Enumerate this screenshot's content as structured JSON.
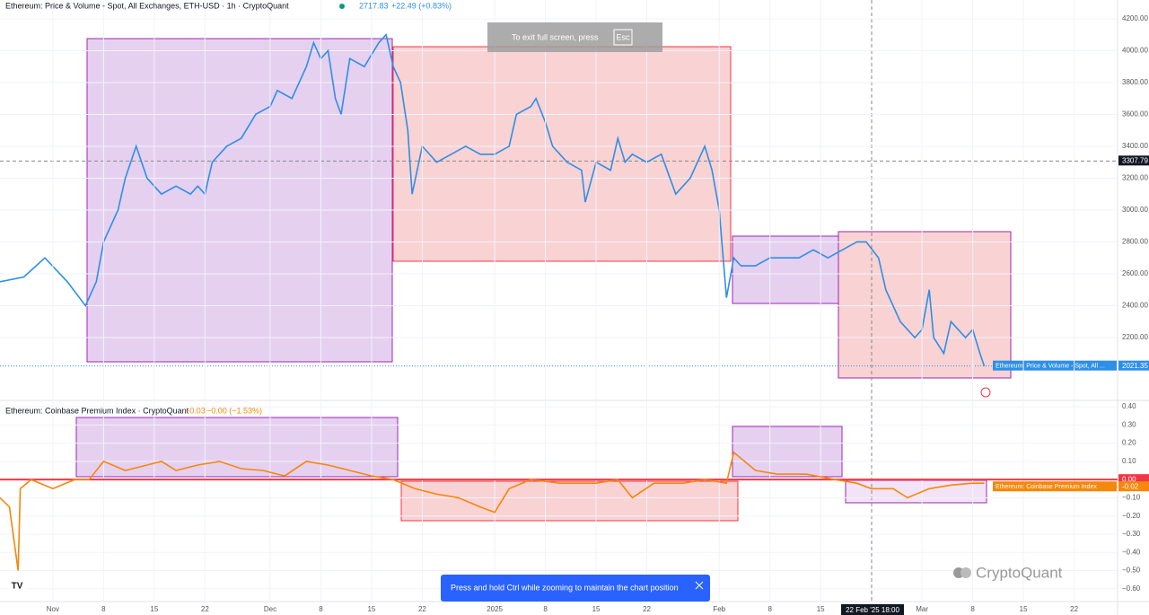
{
  "header": {
    "title": "Ethereum: Price & Volume - Spot, All Exchanges, ETH-USD · 1h · CryptoQuant",
    "price": "2717.83",
    "change": "+22.49 (+0.83%)"
  },
  "chart_data": [
    {
      "type": "line",
      "title": "Ethereum: Price & Volume - Spot, All Exchanges, ETH-USD · 1h · CryptoQuant",
      "color": "#2d8fe6",
      "x": [
        -7.3,
        -4,
        -1.1,
        2,
        4.5,
        6,
        7,
        9,
        10,
        11.5,
        13,
        15,
        17,
        19,
        20,
        21,
        22,
        24,
        26,
        28,
        30,
        31,
        33,
        35,
        36,
        37,
        38,
        39,
        39.8,
        41,
        43,
        45,
        46,
        47,
        48,
        49,
        49.6,
        51,
        53,
        55,
        57,
        59,
        61,
        63,
        64,
        66,
        66.7,
        68,
        69,
        71,
        73,
        73.5,
        75,
        77,
        78,
        79,
        80,
        82,
        84,
        86,
        88,
        90,
        91,
        92,
        93,
        94,
        95,
        97,
        99,
        101,
        103,
        105,
        107,
        109,
        111,
        112.3,
        114,
        115,
        116,
        117,
        119,
        120,
        121,
        121.6,
        123,
        124,
        126,
        127,
        128,
        128.6
      ],
      "values": [
        2550,
        2580,
        2700,
        2550,
        2400,
        2550,
        2800,
        3000,
        3200,
        3400,
        3200,
        3100,
        3150,
        3100,
        3150,
        3100,
        3300,
        3400,
        3450,
        3600,
        3650,
        3750,
        3700,
        3900,
        4050,
        3950,
        4000,
        3700,
        3600,
        3950,
        3900,
        4050,
        4100,
        3900,
        3800,
        3500,
        3100,
        3400,
        3300,
        3350,
        3400,
        3350,
        3350,
        3400,
        3600,
        3650,
        3700,
        3550,
        3400,
        3300,
        3250,
        3050,
        3300,
        3250,
        3450,
        3300,
        3350,
        3300,
        3350,
        3100,
        3200,
        3400,
        3250,
        3000,
        2450,
        2700,
        2650,
        2650,
        2700,
        2700,
        2700,
        2750,
        2700,
        2750,
        2800,
        2800,
        2700,
        2500,
        2400,
        2300,
        2200,
        2250,
        2500,
        2200,
        2100,
        2300,
        2200,
        2250,
        2100,
        2021.35
      ],
      "xlim": [
        -7.3,
        147
      ],
      "ylim": [
        1811,
        4318
      ],
      "yticks": [
        {
          "value": 2200,
          "label": "2200.00"
        },
        {
          "value": 2400,
          "label": "2400.00"
        },
        {
          "value": 2600,
          "label": "2600.00"
        },
        {
          "value": 2800,
          "label": "2800.00"
        },
        {
          "value": 3000,
          "label": "3000.00"
        },
        {
          "value": 3200,
          "label": "3200.00"
        },
        {
          "value": 3400,
          "label": "3400.00"
        },
        {
          "value": 3600,
          "label": "3600.00"
        },
        {
          "value": 3800,
          "label": "3800.00"
        },
        {
          "value": 4000,
          "label": "4000.00"
        },
        {
          "value": 4200,
          "label": "4200.00"
        }
      ],
      "crosshair": {
        "value": 3307.79,
        "label": "3307.79"
      },
      "last_tag": {
        "value": 2021.35,
        "label": "2021.35",
        "name": "Ethereum: Price & Volume - Spot, All ..."
      }
    },
    {
      "type": "line",
      "title": "Ethereum: Coinbase Premium Index · CryptoQuant",
      "current": "−0.03",
      "change": "−0.00 (−1.53%)",
      "color": "#f5870a",
      "x": [
        -7.3,
        -6,
        -4.8,
        -4.5,
        -3,
        0,
        3,
        5,
        7,
        10,
        13,
        15,
        17,
        20,
        23,
        26,
        29,
        32,
        35,
        38,
        41,
        44,
        47,
        50,
        53,
        56,
        59,
        61,
        63,
        66,
        70,
        75,
        78,
        80,
        83,
        87,
        90,
        93,
        94,
        97,
        100,
        104,
        108,
        111,
        113,
        116,
        118,
        121,
        124,
        127,
        128.6
      ],
      "values": [
        -0.1,
        -0.15,
        -0.5,
        -0.05,
        0,
        -0.05,
        0,
        0,
        0.1,
        0.05,
        0.08,
        0.1,
        0.05,
        0.08,
        0.1,
        0.06,
        0.05,
        0.02,
        0.1,
        0.08,
        0.05,
        0.02,
        0,
        -0.05,
        -0.08,
        -0.1,
        -0.15,
        -0.18,
        -0.05,
        0,
        -0.02,
        -0.02,
        0,
        -0.1,
        -0.02,
        -0.02,
        0,
        -0.02,
        0.15,
        0.05,
        0.03,
        0.03,
        0,
        -0.02,
        -0.05,
        -0.05,
        -0.1,
        -0.05,
        -0.03,
        -0.02,
        -0.02
      ],
      "xlim": [
        -7.3,
        147
      ],
      "ylim": [
        -0.67,
        0.43
      ],
      "yticks": [
        {
          "value": -0.6,
          "label": "−0.60"
        },
        {
          "value": -0.5,
          "label": "−0.50"
        },
        {
          "value": -0.4,
          "label": "−0.40"
        },
        {
          "value": -0.3,
          "label": "−0.30"
        },
        {
          "value": -0.2,
          "label": "−0.20"
        },
        {
          "value": -0.1,
          "label": "−0.10"
        },
        {
          "value": 0,
          "label": "0.00"
        },
        {
          "value": 0.1,
          "label": "0.10"
        },
        {
          "value": 0.2,
          "label": "0.20"
        },
        {
          "value": 0.3,
          "label": "0.30"
        },
        {
          "value": 0.4,
          "label": "0.40"
        }
      ],
      "reference_line": {
        "value": 0,
        "label": "0.00",
        "color": "#f23645"
      },
      "last_tag": {
        "value": -0.02,
        "label": "-0.02",
        "name": "Ethereum: Coinbase Premium Index"
      },
      "xticks": [
        {
          "value": 0,
          "label": "Nov"
        },
        {
          "value": 7,
          "label": "8"
        },
        {
          "value": 14,
          "label": "15"
        },
        {
          "value": 21,
          "label": "22"
        },
        {
          "value": 30,
          "label": "Dec"
        },
        {
          "value": 37,
          "label": "8"
        },
        {
          "value": 44,
          "label": "15"
        },
        {
          "value": 51,
          "label": "22"
        },
        {
          "value": 61,
          "label": "2025"
        },
        {
          "value": 68,
          "label": "8"
        },
        {
          "value": 75,
          "label": "15"
        },
        {
          "value": 82,
          "label": "22"
        },
        {
          "value": 92,
          "label": "Feb"
        },
        {
          "value": 99,
          "label": "8"
        },
        {
          "value": 106,
          "label": "15"
        },
        {
          "value": 120,
          "label": "Mar"
        },
        {
          "value": 127,
          "label": "8"
        },
        {
          "value": 134,
          "label": "15"
        },
        {
          "value": 141,
          "label": "22"
        }
      ]
    }
  ],
  "overlays": {
    "fullscreen_hint": "To exit full screen, press",
    "esc_key": "Esc",
    "zoom_hint": "Press and hold Ctrl while zooming to maintain the chart position",
    "logo": "CryptoQuant",
    "crosshair_time": "22 Feb '25 18:00"
  }
}
